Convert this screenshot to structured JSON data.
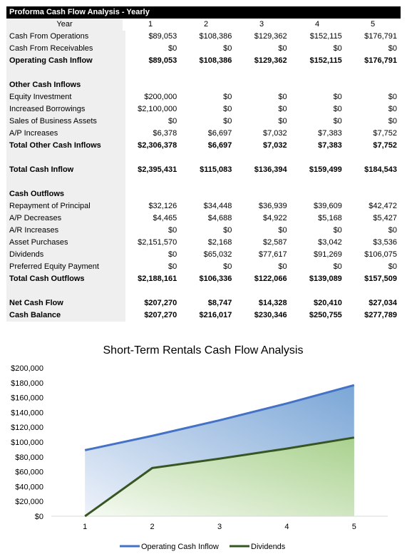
{
  "table": {
    "title": "Proforma Cash Flow Analysis - Yearly",
    "header": {
      "label": "Year",
      "years": [
        "1",
        "2",
        "3",
        "4",
        "5"
      ]
    },
    "rows": [
      {
        "label": "Cash From Operations",
        "values": [
          "$89,053",
          "$108,386",
          "$129,362",
          "$152,115",
          "$176,791"
        ],
        "bold": false
      },
      {
        "label": "Cash From Receivables",
        "values": [
          "$0",
          "$0",
          "$0",
          "$0",
          "$0"
        ],
        "bold": false
      },
      {
        "label": "Operating Cash Inflow",
        "values": [
          "$89,053",
          "$108,386",
          "$129,362",
          "$152,115",
          "$176,791"
        ],
        "bold": true
      },
      {
        "label": "",
        "values": [
          "",
          "",
          "",
          "",
          ""
        ],
        "bold": false
      },
      {
        "label": "Other Cash Inflows",
        "values": [
          "",
          "",
          "",
          "",
          ""
        ],
        "bold": true
      },
      {
        "label": "Equity Investment",
        "values": [
          "$200,000",
          "$0",
          "$0",
          "$0",
          "$0"
        ],
        "bold": false
      },
      {
        "label": "Increased Borrowings",
        "values": [
          "$2,100,000",
          "$0",
          "$0",
          "$0",
          "$0"
        ],
        "bold": false
      },
      {
        "label": "Sales of Business Assets",
        "values": [
          "$0",
          "$0",
          "$0",
          "$0",
          "$0"
        ],
        "bold": false
      },
      {
        "label": "A/P Increases",
        "values": [
          "$6,378",
          "$6,697",
          "$7,032",
          "$7,383",
          "$7,752"
        ],
        "bold": false
      },
      {
        "label": "Total Other Cash Inflows",
        "values": [
          "$2,306,378",
          "$6,697",
          "$7,032",
          "$7,383",
          "$7,752"
        ],
        "bold": true
      },
      {
        "label": "",
        "values": [
          "",
          "",
          "",
          "",
          ""
        ],
        "bold": false
      },
      {
        "label": "Total Cash Inflow",
        "values": [
          "$2,395,431",
          "$115,083",
          "$136,394",
          "$159,499",
          "$184,543"
        ],
        "bold": true
      },
      {
        "label": "",
        "values": [
          "",
          "",
          "",
          "",
          ""
        ],
        "bold": false
      },
      {
        "label": "Cash Outflows",
        "values": [
          "",
          "",
          "",
          "",
          ""
        ],
        "bold": true
      },
      {
        "label": "Repayment of Principal",
        "values": [
          "$32,126",
          "$34,448",
          "$36,939",
          "$39,609",
          "$42,472"
        ],
        "bold": false
      },
      {
        "label": "A/P Decreases",
        "values": [
          "$4,465",
          "$4,688",
          "$4,922",
          "$5,168",
          "$5,427"
        ],
        "bold": false
      },
      {
        "label": "A/R Increases",
        "values": [
          "$0",
          "$0",
          "$0",
          "$0",
          "$0"
        ],
        "bold": false
      },
      {
        "label": "Asset Purchases",
        "values": [
          "$2,151,570",
          "$2,168",
          "$2,587",
          "$3,042",
          "$3,536"
        ],
        "bold": false
      },
      {
        "label": "Dividends",
        "values": [
          "$0",
          "$65,032",
          "$77,617",
          "$91,269",
          "$106,075"
        ],
        "bold": false
      },
      {
        "label": "Preferred Equity Payment",
        "values": [
          "$0",
          "$0",
          "$0",
          "$0",
          "$0"
        ],
        "bold": false
      },
      {
        "label": "Total Cash Outflows",
        "values": [
          "$2,188,161",
          "$106,336",
          "$122,066",
          "$139,089",
          "$157,509"
        ],
        "bold": true
      },
      {
        "label": "",
        "values": [
          "",
          "",
          "",
          "",
          ""
        ],
        "bold": false
      },
      {
        "label": "Net Cash Flow",
        "values": [
          "$207,270",
          "$8,747",
          "$14,328",
          "$20,410",
          "$27,034"
        ],
        "bold": true
      },
      {
        "label": "Cash Balance",
        "values": [
          "$207,270",
          "$216,017",
          "$230,346",
          "$250,755",
          "$277,789"
        ],
        "bold": true
      }
    ]
  },
  "chart_data": {
    "type": "area",
    "title": "Short-Term Rentals Cash Flow Analysis",
    "x": [
      "1",
      "2",
      "3",
      "4",
      "5"
    ],
    "ylim": [
      0,
      200000
    ],
    "yticks": [
      0,
      20000,
      40000,
      60000,
      80000,
      100000,
      120000,
      140000,
      160000,
      180000,
      200000
    ],
    "ytick_labels": [
      "$0",
      "$20,000",
      "$40,000",
      "$60,000",
      "$80,000",
      "$100,000",
      "$120,000",
      "$140,000",
      "$160,000",
      "$180,000",
      "$200,000"
    ],
    "grid": false,
    "legend_position": "bottom",
    "series": [
      {
        "name": "Operating Cash Inflow",
        "values": [
          89053,
          108386,
          129362,
          152115,
          176791
        ],
        "color": "#4472c4",
        "fill_light": "#eef2fa",
        "fill_dark": "#7aa6d6"
      },
      {
        "name": "Dividends",
        "values": [
          0,
          65032,
          77617,
          91269,
          106075
        ],
        "color": "#375623",
        "fill_light": "#f6faf3",
        "fill_dark": "#a9d18e"
      }
    ]
  }
}
